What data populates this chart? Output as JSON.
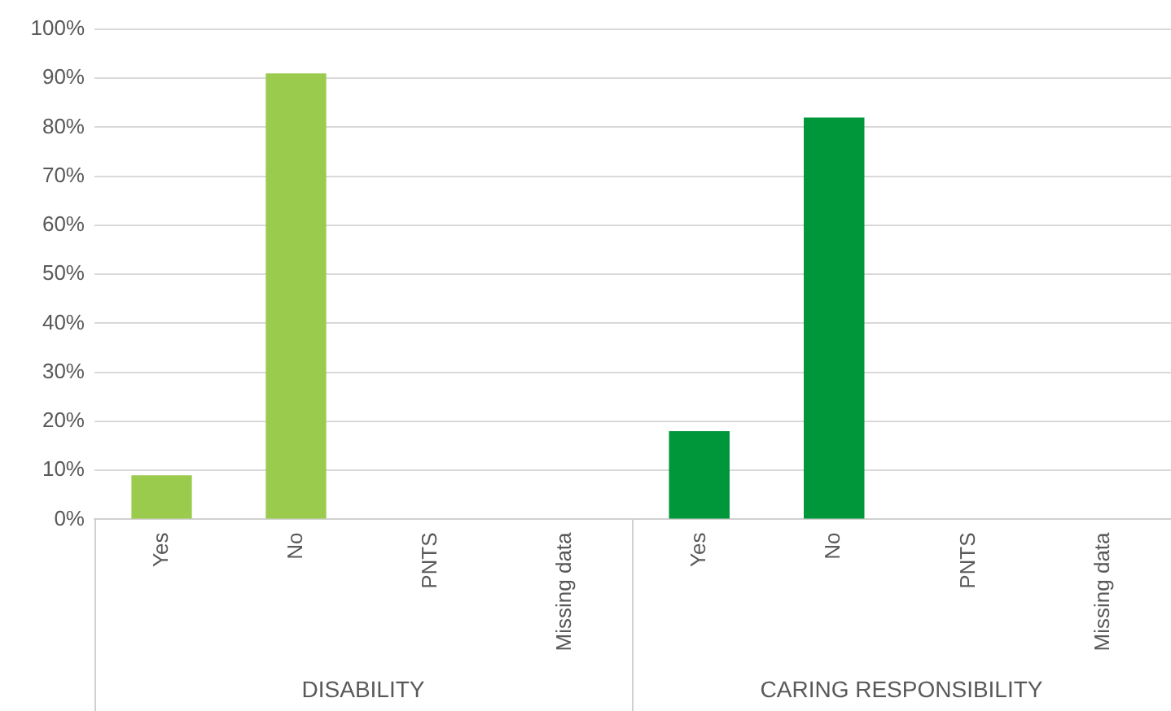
{
  "chart_data": [
    {
      "type": "bar",
      "xlabel": "DISABILITY",
      "categories": [
        "Yes",
        "No",
        "PNTS",
        "Missing data"
      ],
      "values": [
        9,
        91,
        0,
        0
      ],
      "color": "#9bcb4c",
      "ylim": [
        0,
        100
      ],
      "yticks": [
        {
          "value": 0,
          "label": "0%"
        },
        {
          "value": 10,
          "label": "10%"
        },
        {
          "value": 20,
          "label": "20%"
        },
        {
          "value": 30,
          "label": "30%"
        },
        {
          "value": 40,
          "label": "40%"
        },
        {
          "value": 50,
          "label": "50%"
        },
        {
          "value": 60,
          "label": "60%"
        },
        {
          "value": 70,
          "label": "70%"
        },
        {
          "value": 80,
          "label": "80%"
        },
        {
          "value": 90,
          "label": "90%"
        },
        {
          "value": 100,
          "label": "100%"
        }
      ],
      "grid": "y",
      "legend": false
    },
    {
      "type": "bar",
      "xlabel": "CARING RESPONSIBILITY",
      "categories": [
        "Yes",
        "No",
        "PNTS",
        "Missing data"
      ],
      "values": [
        18,
        82,
        0,
        0
      ],
      "color": "#00963a",
      "ylim": [
        0,
        100
      ],
      "yticks": [
        0,
        10,
        20,
        30,
        40,
        50,
        60,
        70,
        80,
        90,
        100
      ],
      "grid": "y",
      "legend": false,
      "tick_labels": "x"
    }
  ]
}
